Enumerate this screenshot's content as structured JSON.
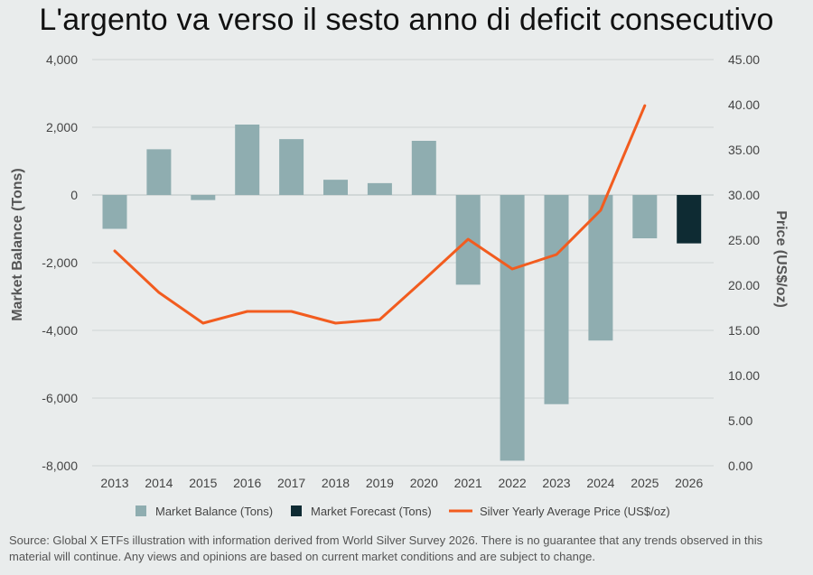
{
  "title": "L'argento va verso il sesto anno di deficit consecutivo",
  "source": "Source: Global X ETFs illustration with information derived from World Silver Survey 2026. There is no guarantee that any trends observed in this material will continue. Any views and opinions are based on current market conditions and are subject to change.",
  "colors": {
    "balance": "#8fadb0",
    "forecast": "#0e2b33",
    "price": "#f25c1f",
    "grid": "#cfd5d5"
  },
  "chart_data": {
    "type": "bar",
    "categories": [
      "2013",
      "2014",
      "2015",
      "2016",
      "2017",
      "2018",
      "2019",
      "2020",
      "2021",
      "2022",
      "2023",
      "2024",
      "2025",
      "2026"
    ],
    "series": [
      {
        "name": "Market Balance (Tons)",
        "kind": "bar",
        "axis": "left",
        "values": [
          -1000,
          1350,
          -150,
          2080,
          1650,
          450,
          350,
          1600,
          -2650,
          -7850,
          -6180,
          -4300,
          -1280,
          null
        ]
      },
      {
        "name": "Market Forecast (Tons)",
        "kind": "bar",
        "axis": "left",
        "values": [
          null,
          null,
          null,
          null,
          null,
          null,
          null,
          null,
          null,
          null,
          null,
          null,
          null,
          -1430
        ]
      },
      {
        "name": "Silver Yearly Average Price (US$/oz)",
        "kind": "line",
        "axis": "right",
        "values": [
          23.8,
          19.2,
          15.8,
          17.1,
          17.1,
          15.8,
          16.2,
          20.6,
          25.1,
          21.8,
          23.4,
          28.3,
          39.9,
          null
        ]
      }
    ],
    "ylabel": "Market Balance (Tons)",
    "y2label": "Price (US$/oz)",
    "ylim": [
      -8000,
      4000
    ],
    "y2lim": [
      0,
      45
    ],
    "yticks": [
      "4,000",
      "2,000",
      "0",
      "-2,000",
      "-4,000",
      "-6,000",
      "-8,000"
    ],
    "yticks_values": [
      4000,
      2000,
      0,
      -2000,
      -4000,
      -6000,
      -8000
    ],
    "y2ticks": [
      "45.00",
      "40.00",
      "35.00",
      "30.00",
      "25.00",
      "20.00",
      "15.00",
      "10.00",
      "5.00",
      "0.00"
    ],
    "y2ticks_values": [
      45,
      40,
      35,
      30,
      25,
      20,
      15,
      10,
      5,
      0
    ],
    "grid": true,
    "legend_position": "bottom"
  }
}
